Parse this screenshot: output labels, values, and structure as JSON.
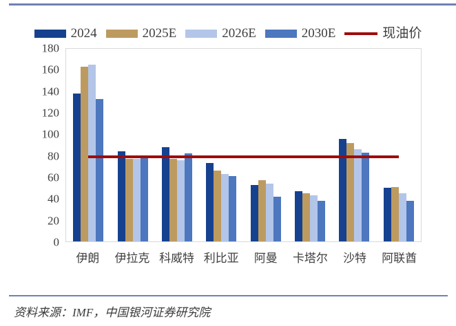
{
  "colors": {
    "rule": "#6e81b3",
    "axis_text": "#404040",
    "plot_border": "#d9d9d9"
  },
  "footer": {
    "source_text": "资料来源：IMF，中国银河证券研究院"
  },
  "chart_data": {
    "type": "bar",
    "title": "",
    "xlabel": "",
    "ylabel": "",
    "ylim": [
      0,
      180
    ],
    "yticks": [
      180,
      160,
      140,
      120,
      100,
      80,
      60,
      40,
      20,
      0
    ],
    "grid": false,
    "legend_position": "top",
    "categories": [
      "伊朗",
      "伊拉克",
      "科威特",
      "利比亚",
      "阿曼",
      "卡塔尔",
      "沙特",
      "阿联酋"
    ],
    "series": [
      {
        "name": "2024",
        "color": "#16418f",
        "values": [
          138,
          84,
          88,
          73,
          53,
          47,
          96,
          50
        ]
      },
      {
        "name": "2025E",
        "color": "#bd9b60",
        "values": [
          163,
          77,
          77,
          66,
          57,
          45,
          92,
          51
        ]
      },
      {
        "name": "2026E",
        "color": "#b3c6e9",
        "values": [
          165,
          77,
          76,
          63,
          54,
          43,
          86,
          45
        ]
      },
      {
        "name": "2030E",
        "color": "#4d77be",
        "values": [
          133,
          78,
          82,
          61,
          42,
          38,
          83,
          38
        ]
      }
    ],
    "line_series": {
      "name": "现油价",
      "color": "#9e0c0c",
      "value": 79,
      "span_note": "horizontal line from first to last category center"
    }
  }
}
